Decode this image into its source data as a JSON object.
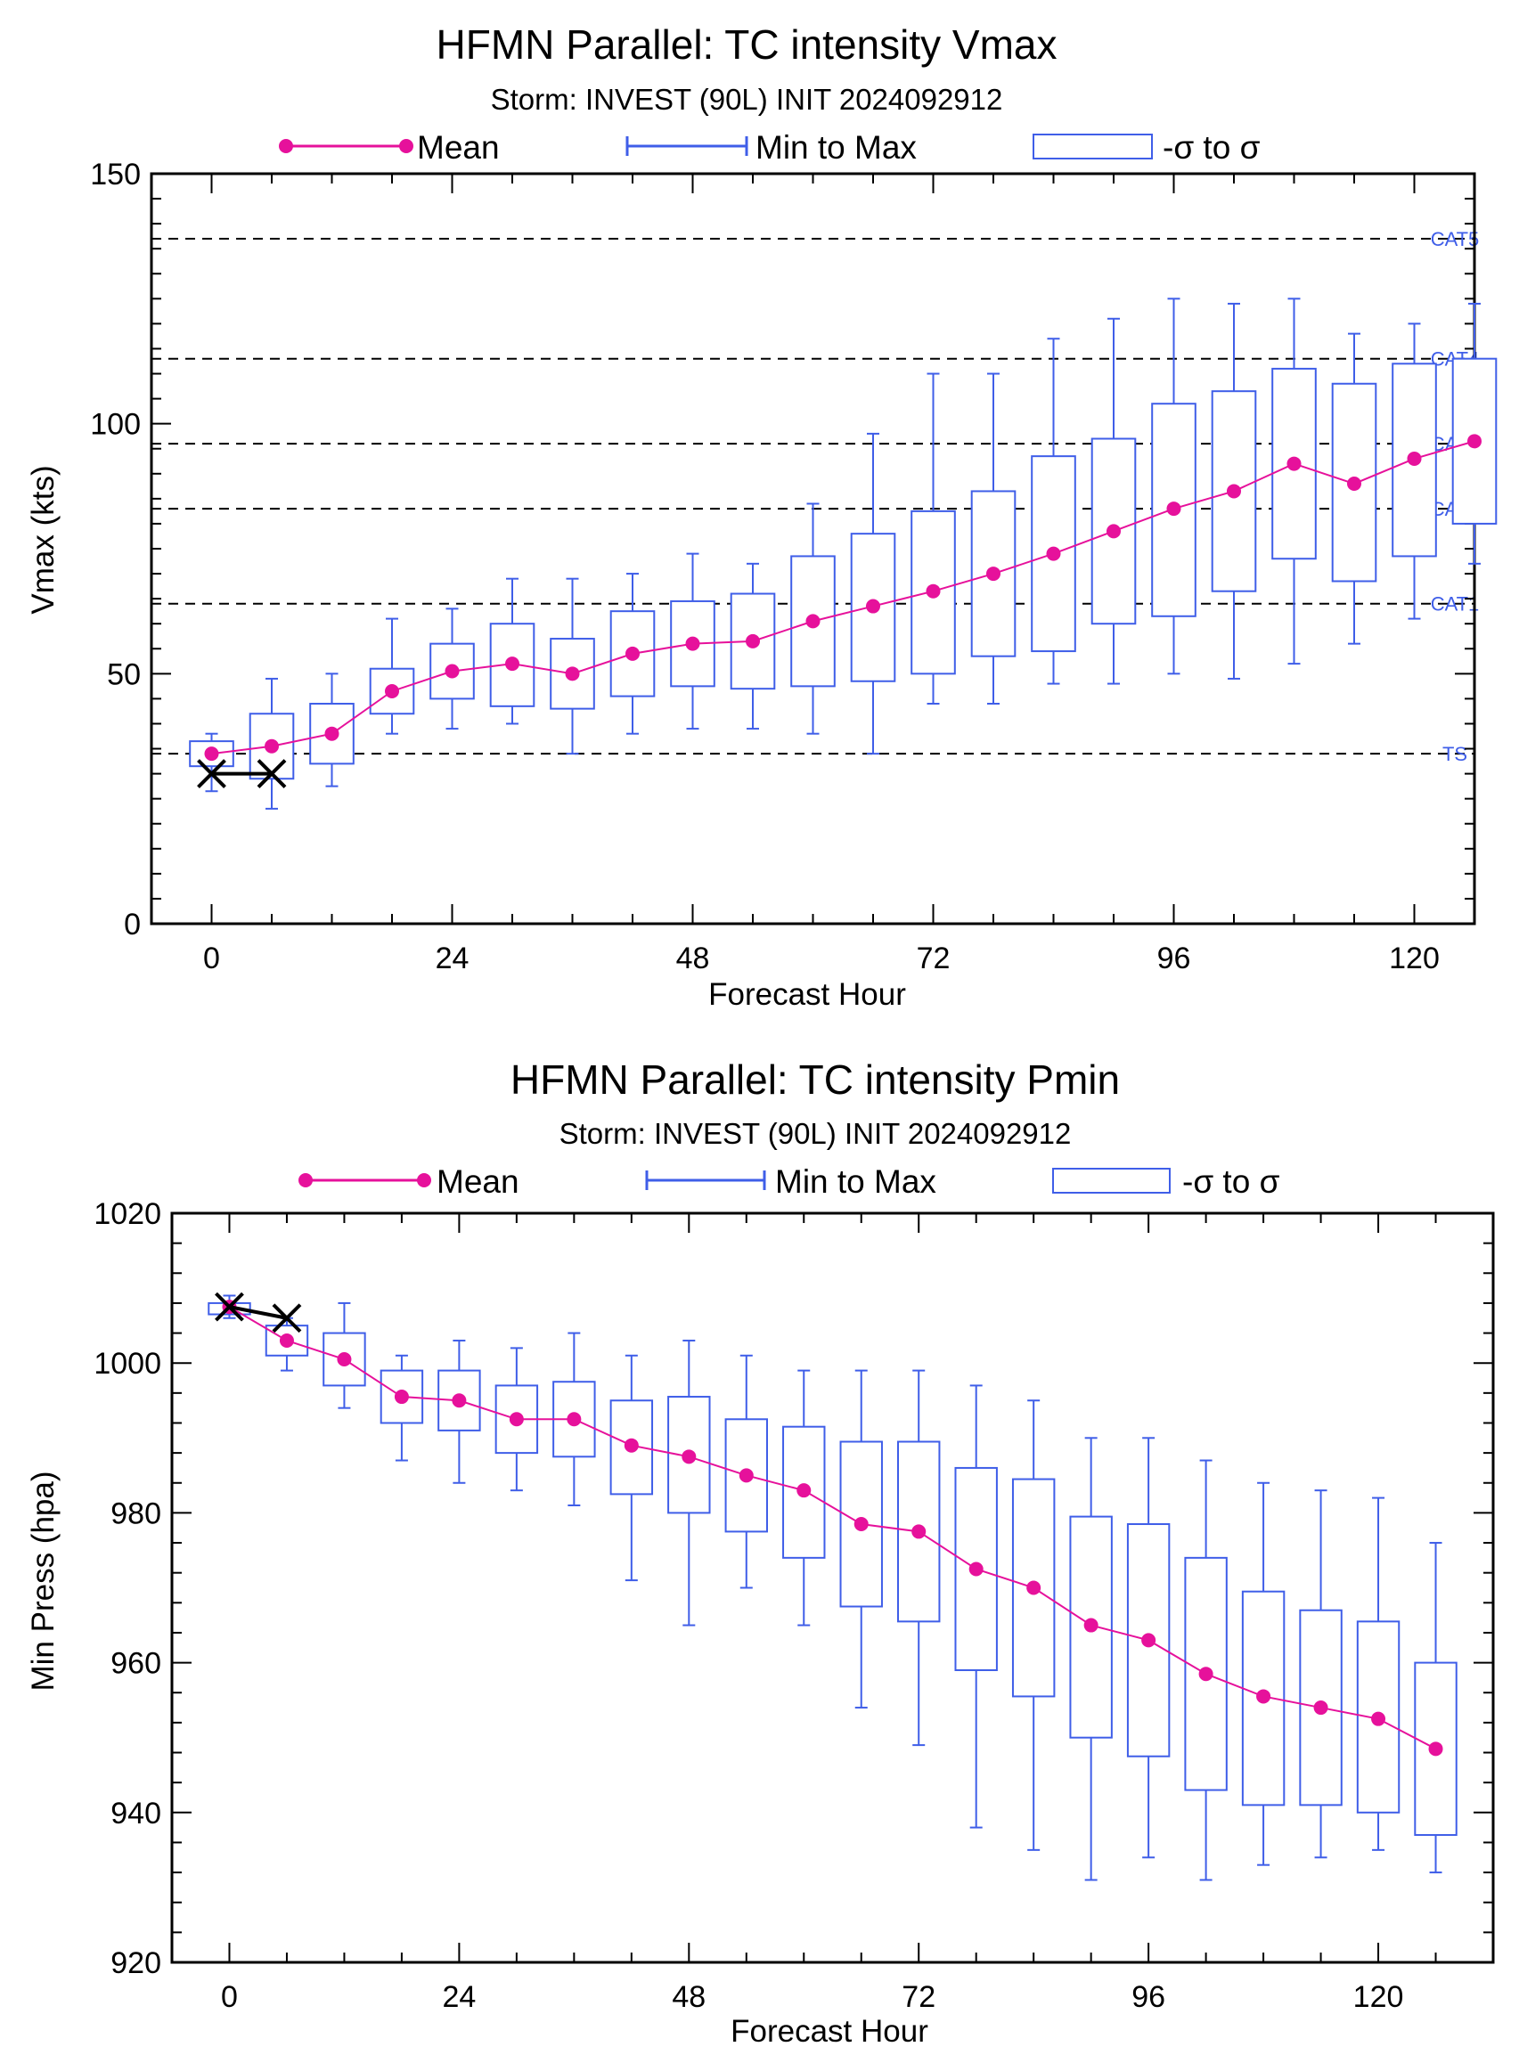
{
  "colors": {
    "mean": "#e6119b",
    "range": "#3f5ee8",
    "obs": "#000000",
    "threshold": "#000000",
    "cat_label": "#3f5ee8"
  },
  "legend": {
    "mean": "Mean",
    "range": "Min to Max",
    "sigma": "-σ to σ"
  },
  "chart_data": [
    {
      "type": "box",
      "title": "HFMN Parallel: TC intensity Vmax",
      "subtitle": "Storm: INVEST (90L) INIT 2024092912",
      "xlabel": "Forecast Hour",
      "ylabel": "Vmax (kts)",
      "xlim": [
        -6,
        126
      ],
      "ylim": [
        0,
        150
      ],
      "xticks": [
        0,
        24,
        48,
        72,
        96,
        120
      ],
      "yticks": [
        0,
        50,
        100,
        150
      ],
      "hours": [
        0,
        6,
        12,
        18,
        24,
        30,
        36,
        42,
        48,
        54,
        60,
        66,
        72,
        78,
        84,
        90,
        96,
        102,
        108,
        114,
        120,
        126
      ],
      "series": [
        {
          "key": "mean",
          "values": [
            34,
            35.5,
            38,
            46.5,
            50.5,
            52,
            50,
            54,
            56,
            56.5,
            60.5,
            63.5,
            66.5,
            70,
            74,
            78.5,
            83,
            86.5,
            92,
            88,
            93,
            96.5
          ]
        },
        {
          "key": "min",
          "values": [
            26.5,
            23,
            27.5,
            38,
            39,
            40,
            34,
            38,
            39,
            39,
            38,
            34,
            44,
            44,
            48,
            48,
            50,
            49,
            52,
            56,
            61,
            72
          ]
        },
        {
          "key": "max",
          "values": [
            38,
            49,
            50,
            61,
            63,
            69,
            69,
            70,
            74,
            72,
            84,
            98,
            110,
            110,
            117,
            121,
            125,
            124,
            125,
            118,
            120,
            124
          ]
        },
        {
          "key": "sigma_low",
          "values": [
            31.5,
            29,
            32,
            42,
            45,
            43.5,
            43,
            45.5,
            47.5,
            47,
            47.5,
            48.5,
            50,
            53.5,
            54.5,
            60,
            61.5,
            66.5,
            73,
            68.5,
            73.5,
            80
          ]
        },
        {
          "key": "sigma_high",
          "values": [
            36.5,
            42,
            44,
            51,
            56,
            60,
            57,
            62.5,
            64.5,
            66,
            73.5,
            78,
            82.5,
            86.5,
            93.5,
            97,
            104,
            106.5,
            111,
            108,
            112,
            113
          ]
        }
      ],
      "observed": {
        "x": [
          0,
          6
        ],
        "y": [
          30,
          30
        ]
      },
      "thresholds": [
        {
          "label": "TS",
          "value": 34
        },
        {
          "label": "CAT1",
          "value": 64
        },
        {
          "label": "CAT2",
          "value": 83
        },
        {
          "label": "CAT3",
          "value": 96
        },
        {
          "label": "CAT4",
          "value": 113
        },
        {
          "label": "CAT5",
          "value": 137
        }
      ]
    },
    {
      "type": "box",
      "title": "HFMN Parallel: TC intensity Pmin",
      "subtitle": "Storm: INVEST (90L) INIT 2024092912",
      "xlabel": "Forecast Hour",
      "ylabel": "Min Press (hpa)",
      "xlim": [
        -6,
        132
      ],
      "ylim": [
        920,
        1020
      ],
      "xticks": [
        0,
        24,
        48,
        72,
        96,
        120
      ],
      "yticks": [
        920,
        940,
        960,
        980,
        1000,
        1020
      ],
      "hours": [
        0,
        6,
        12,
        18,
        24,
        30,
        36,
        42,
        48,
        54,
        60,
        66,
        72,
        78,
        84,
        90,
        96,
        102,
        108,
        114,
        120,
        126
      ],
      "series": [
        {
          "key": "mean",
          "values": [
            1007.5,
            1003,
            1000.5,
            995.5,
            995,
            992.5,
            992.5,
            989,
            987.5,
            985,
            983,
            978.5,
            977.5,
            972.5,
            970,
            965,
            963,
            958.5,
            955.5,
            954,
            952.5,
            948.5
          ]
        },
        {
          "key": "min",
          "values": [
            1006,
            999,
            994,
            987,
            984,
            983,
            981,
            971,
            965,
            970,
            965,
            954,
            949,
            938,
            935,
            931,
            934,
            931,
            933,
            934,
            935,
            932
          ]
        },
        {
          "key": "max",
          "values": [
            1009,
            1006,
            1008,
            1001,
            1003,
            1002,
            1004,
            1001,
            1003,
            1001,
            999,
            999,
            999,
            997,
            995,
            990,
            990,
            987,
            984,
            983,
            982,
            976
          ]
        },
        {
          "key": "sigma_low",
          "values": [
            1006.5,
            1001,
            997,
            992,
            991,
            988,
            987.5,
            982.5,
            980,
            977.5,
            974,
            967.5,
            965.5,
            959,
            955.5,
            950,
            947.5,
            943,
            941,
            941,
            940,
            937
          ]
        },
        {
          "key": "sigma_high",
          "values": [
            1008,
            1005,
            1004,
            999,
            999,
            997,
            997.5,
            995,
            995.5,
            992.5,
            991.5,
            989.5,
            989.5,
            986,
            984.5,
            979.5,
            978.5,
            974,
            969.5,
            967,
            965.5,
            960
          ]
        }
      ],
      "observed": {
        "x": [
          0,
          6
        ],
        "y": [
          1007.5,
          1006
        ]
      },
      "thresholds": []
    }
  ]
}
